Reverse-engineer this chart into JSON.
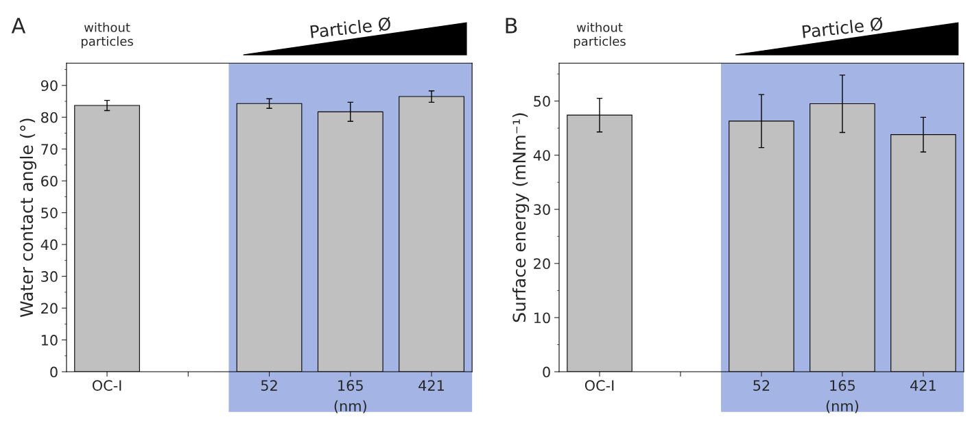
{
  "chart_data": [
    {
      "type": "bar",
      "title": "A",
      "ylabel": "Water contact angle (°)",
      "categories": [
        "OC-I",
        null,
        "52",
        "165",
        "421"
      ],
      "series": [
        {
          "color": "#c0c0c0",
          "values": [
            83.7,
            null,
            84.3,
            81.7,
            86.5
          ],
          "errors": [
            1.6,
            null,
            1.5,
            3.0,
            1.8
          ]
        }
      ],
      "ylim": [
        0,
        97
      ],
      "yticks": [
        0,
        10,
        20,
        30,
        40,
        50,
        60,
        70,
        80,
        90
      ],
      "grid": false,
      "legend": false,
      "bands": [
        {
          "axis": "x",
          "from": "52",
          "to": "421",
          "color": "#a4b4e4"
        }
      ],
      "annotations": [
        "without\nparticles",
        "Particle Ø",
        "(nm)"
      ]
    },
    {
      "type": "bar",
      "title": "B",
      "ylabel": "Surface energy (mNm⁻¹)",
      "categories": [
        "OC-I",
        null,
        "52",
        "165",
        "421"
      ],
      "series": [
        {
          "color": "#c0c0c0",
          "values": [
            47.4,
            null,
            46.3,
            49.5,
            43.8
          ],
          "errors": [
            3.1,
            null,
            4.9,
            5.3,
            3.2
          ]
        }
      ],
      "ylim": [
        0,
        57
      ],
      "yticks": [
        0,
        10,
        20,
        30,
        40,
        50
      ],
      "grid": false,
      "legend": false,
      "bands": [
        {
          "axis": "x",
          "from": "52",
          "to": "421",
          "color": "#a4b4e4"
        }
      ],
      "annotations": [
        "without\nparticles",
        "Particle Ø",
        "(nm)"
      ]
    }
  ]
}
